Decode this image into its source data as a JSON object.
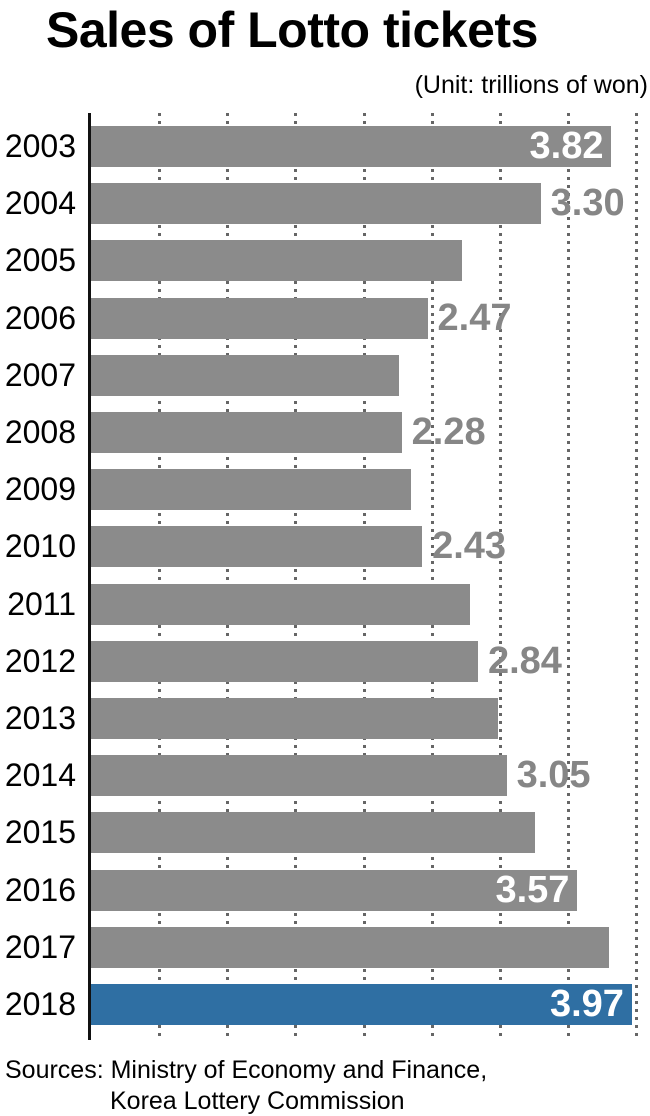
{
  "title": "Sales of Lotto tickets",
  "unit_note": "(Unit: trillions of won)",
  "sources": {
    "line1": "Sources: Ministry of Economy and Finance,",
    "line2": "Korea Lottery Commission"
  },
  "chart_data": {
    "type": "bar",
    "orientation": "horizontal",
    "title": "Sales of Lotto tickets",
    "unit": "trillions of won",
    "xlim": [
      0,
      4.0
    ],
    "gridline_step": 0.5,
    "grid": "dotted-vertical",
    "categories": [
      "2003",
      "2004",
      "2005",
      "2006",
      "2007",
      "2008",
      "2009",
      "2010",
      "2011",
      "2012",
      "2013",
      "2014",
      "2015",
      "2016",
      "2017",
      "2018"
    ],
    "values": [
      3.82,
      3.3,
      2.72,
      2.47,
      2.26,
      2.28,
      2.35,
      2.43,
      2.78,
      2.84,
      2.99,
      3.05,
      3.26,
      3.57,
      3.8,
      3.97
    ],
    "bars": [
      {
        "year": "2003",
        "value": 3.82,
        "label": "3.82",
        "label_position": "inside",
        "highlight": false
      },
      {
        "year": "2004",
        "value": 3.3,
        "label": "3.30",
        "label_position": "outside",
        "highlight": false
      },
      {
        "year": "2005",
        "value": 2.72,
        "label": "",
        "label_position": "none",
        "highlight": false
      },
      {
        "year": "2006",
        "value": 2.47,
        "label": "2.47",
        "label_position": "outside",
        "highlight": false
      },
      {
        "year": "2007",
        "value": 2.26,
        "label": "",
        "label_position": "none",
        "highlight": false
      },
      {
        "year": "2008",
        "value": 2.28,
        "label": "2.28",
        "label_position": "outside",
        "highlight": false
      },
      {
        "year": "2009",
        "value": 2.35,
        "label": "",
        "label_position": "none",
        "highlight": false
      },
      {
        "year": "2010",
        "value": 2.43,
        "label": "2.43",
        "label_position": "outside",
        "highlight": false
      },
      {
        "year": "2011",
        "value": 2.78,
        "label": "",
        "label_position": "none",
        "highlight": false
      },
      {
        "year": "2012",
        "value": 2.84,
        "label": "2.84",
        "label_position": "outside",
        "highlight": false
      },
      {
        "year": "2013",
        "value": 2.99,
        "label": "",
        "label_position": "none",
        "highlight": false
      },
      {
        "year": "2014",
        "value": 3.05,
        "label": "3.05",
        "label_position": "outside",
        "highlight": false
      },
      {
        "year": "2015",
        "value": 3.26,
        "label": "",
        "label_position": "none",
        "highlight": false
      },
      {
        "year": "2016",
        "value": 3.57,
        "label": "3.57",
        "label_position": "inside",
        "highlight": false
      },
      {
        "year": "2017",
        "value": 3.8,
        "label": "",
        "label_position": "none",
        "highlight": false
      },
      {
        "year": "2018",
        "value": 3.97,
        "label": "3.97",
        "label_position": "inside",
        "highlight": true
      }
    ],
    "colors": {
      "bar": "#8b8b8b",
      "highlight": "#2f6fa3",
      "label_inside": "#ffffff",
      "label_outside": "#868686",
      "axis": "#111111",
      "gridline": "#666666"
    },
    "legend": "none"
  }
}
